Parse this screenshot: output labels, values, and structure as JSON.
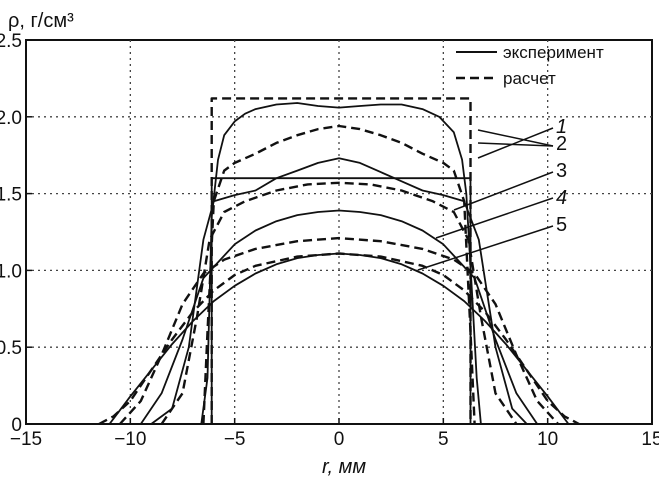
{
  "chart_data": {
    "type": "line",
    "ylabel": "ρ, г/см³",
    "xlabel": "r, мм",
    "xlim": [
      -15,
      15
    ],
    "ylim": [
      0,
      2.5
    ],
    "xticks": [
      "−15",
      "−10",
      "−5",
      "0",
      "5",
      "10",
      "15"
    ],
    "yticks": [
      "0",
      "0.5",
      "1.0",
      "1.5",
      "2.0",
      "2.5"
    ],
    "grid": true,
    "legend": [
      {
        "label": "эксперимент",
        "style": "solid"
      },
      {
        "label": "расчет",
        "style": "dashed"
      }
    ],
    "curve_labels": [
      "1",
      "2",
      "3",
      "4",
      "5"
    ],
    "series": [
      {
        "style": "dashed",
        "x": [
          -6.1,
          -6.1,
          6.3,
          6.3
        ],
        "y": [
          0,
          2.12,
          2.12,
          0
        ]
      },
      {
        "style": "solid",
        "x": [
          -6.1,
          -6.1,
          6.3,
          6.3
        ],
        "y": [
          0,
          1.6,
          1.6,
          0
        ]
      },
      {
        "style": "solid",
        "x": [
          -6.6,
          -6.3,
          -6.1,
          -5.8,
          -5.5,
          -5,
          -4.5,
          -4,
          -3,
          -2,
          -1,
          0,
          1,
          2,
          3,
          4,
          4.8,
          5.5,
          5.9,
          6.1,
          6.4,
          6.6,
          6.8
        ],
        "y": [
          0,
          0.3,
          1.35,
          1.72,
          1.88,
          1.97,
          2.02,
          2.05,
          2.08,
          2.09,
          2.07,
          2.06,
          2.07,
          2.08,
          2.08,
          2.05,
          2.0,
          1.9,
          1.72,
          1.5,
          0.8,
          0.3,
          0
        ]
      },
      {
        "style": "dashed",
        "x": [
          -6.5,
          -6.3,
          -6.0,
          -5.5,
          -5,
          -4,
          -3,
          -2,
          -1,
          0,
          1,
          2,
          3,
          4,
          5,
          5.5,
          6,
          6.3,
          6.5
        ],
        "y": [
          0,
          0.6,
          1.45,
          1.65,
          1.7,
          1.76,
          1.83,
          1.88,
          1.92,
          1.94,
          1.92,
          1.88,
          1.83,
          1.76,
          1.7,
          1.65,
          1.45,
          0.6,
          0
        ]
      },
      {
        "style": "solid",
        "x": [
          -9,
          -8,
          -7.2,
          -6.5,
          -6,
          -5,
          -4,
          -3,
          -2,
          -1,
          0,
          1,
          2,
          3,
          4,
          5,
          6,
          6.7,
          7.5,
          8.3,
          9
        ],
        "y": [
          0,
          0.1,
          0.5,
          1.2,
          1.45,
          1.49,
          1.52,
          1.6,
          1.65,
          1.7,
          1.73,
          1.7,
          1.64,
          1.58,
          1.52,
          1.49,
          1.45,
          1.2,
          0.5,
          0.1,
          0
        ]
      },
      {
        "style": "dashed",
        "x": [
          -8.5,
          -7.5,
          -6.8,
          -6.2,
          -5.5,
          -4.5,
          -3,
          -1.5,
          0,
          1.5,
          3,
          4.5,
          5.5,
          6.2,
          6.8,
          7.5,
          8.5
        ],
        "y": [
          0,
          0.2,
          0.7,
          1.2,
          1.38,
          1.45,
          1.52,
          1.56,
          1.57,
          1.56,
          1.52,
          1.45,
          1.38,
          1.2,
          0.7,
          0.2,
          0
        ]
      },
      {
        "style": "solid",
        "x": [
          -9.5,
          -8.5,
          -7.5,
          -6.5,
          -5,
          -4,
          -3,
          -2,
          -1,
          0,
          1,
          2,
          3,
          4,
          5,
          6.5,
          7.5,
          8.5,
          9.5
        ],
        "y": [
          0,
          0.2,
          0.55,
          0.95,
          1.17,
          1.26,
          1.32,
          1.36,
          1.38,
          1.39,
          1.38,
          1.36,
          1.32,
          1.26,
          1.17,
          0.95,
          0.55,
          0.2,
          0
        ]
      },
      {
        "style": "dashed",
        "x": [
          -10.5,
          -9.5,
          -8.5,
          -7.5,
          -6.5,
          -5.5,
          -4,
          -2,
          0,
          2,
          4,
          5.5,
          6.5,
          7.5,
          8.5,
          9.5,
          10.5
        ],
        "y": [
          0,
          0.15,
          0.45,
          0.78,
          0.98,
          1.07,
          1.14,
          1.19,
          1.21,
          1.19,
          1.14,
          1.07,
          0.98,
          0.78,
          0.45,
          0.15,
          0
        ]
      },
      {
        "style": "solid",
        "x": [
          -11,
          -10,
          -9,
          -8,
          -7,
          -6,
          -5,
          -4,
          -3,
          -2,
          -1,
          0,
          1,
          2,
          3,
          4,
          5,
          6,
          7,
          8,
          9,
          10,
          11
        ],
        "y": [
          0,
          0.18,
          0.35,
          0.52,
          0.67,
          0.8,
          0.9,
          0.98,
          1.04,
          1.08,
          1.1,
          1.11,
          1.1,
          1.08,
          1.04,
          0.98,
          0.9,
          0.8,
          0.67,
          0.52,
          0.35,
          0.18,
          0
        ]
      },
      {
        "style": "dashed",
        "x": [
          -11.5,
          -10.8,
          -10,
          -9,
          -8,
          -7,
          -6,
          -5,
          -4,
          -2,
          0,
          2,
          4,
          5,
          6,
          7,
          8,
          9,
          10,
          10.8,
          11.5
        ],
        "y": [
          0,
          0.05,
          0.15,
          0.35,
          0.55,
          0.73,
          0.87,
          0.97,
          1.03,
          1.09,
          1.11,
          1.09,
          1.03,
          0.97,
          0.87,
          0.73,
          0.55,
          0.35,
          0.15,
          0.05,
          0
        ]
      }
    ]
  }
}
